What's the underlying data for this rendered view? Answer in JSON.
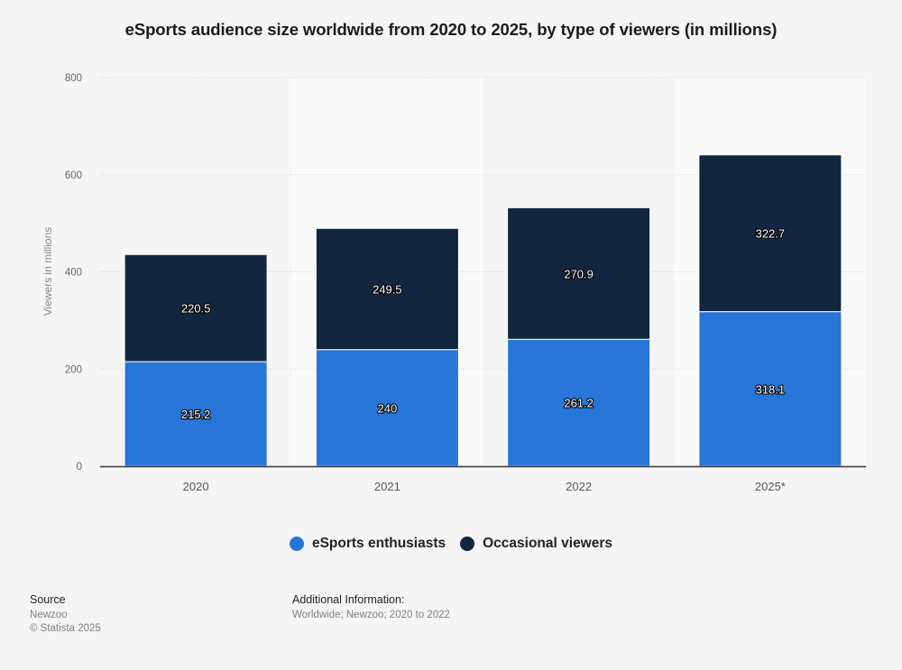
{
  "chart_data": {
    "type": "bar",
    "stacked": true,
    "title": "eSports audience size worldwide from 2020 to 2025, by type of viewers (in millions)",
    "xlabel": "",
    "ylabel": "Viewers in millions",
    "ylim": [
      0,
      800
    ],
    "yticks": [
      0,
      200,
      400,
      600,
      800
    ],
    "grid": true,
    "legend_position": "bottom-center",
    "categories": [
      "2020",
      "2021",
      "2022",
      "2025*"
    ],
    "series": [
      {
        "name": "eSports enthusiasts",
        "color": "#2875d8",
        "values": [
          215.2,
          240,
          261.2,
          318.1
        ],
        "labels": [
          "215.2",
          "240",
          "261.2",
          "318.1"
        ]
      },
      {
        "name": "Occasional viewers",
        "color": "#12263f",
        "values": [
          220.5,
          249.5,
          270.9,
          322.7
        ],
        "labels": [
          "220.5",
          "249.5",
          "270.9",
          "322.7"
        ]
      }
    ]
  },
  "footer": {
    "source_heading": "Source",
    "source_lines": [
      "Newzoo",
      "© Statista 2025"
    ],
    "additional_heading": "Additional Information:",
    "additional_lines": [
      "Worldwide; Newzoo; 2020 to 2022"
    ]
  }
}
